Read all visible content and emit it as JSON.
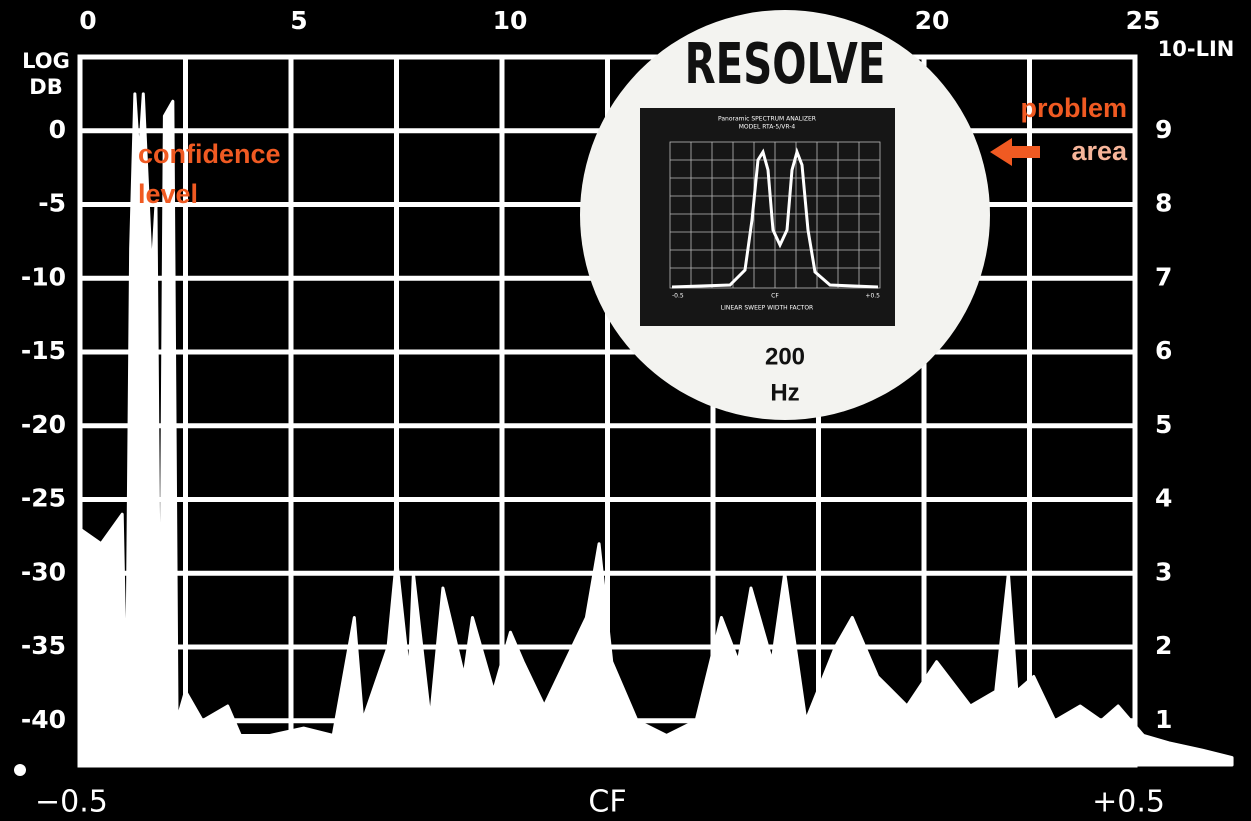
{
  "chart_data": {
    "type": "area",
    "y_label": [
      "LOG",
      "DB"
    ],
    "y2_label": "10-LIN",
    "color": "#ffffff",
    "x": [
      0.0,
      0.5,
      1.0,
      1.1,
      1.2,
      1.3,
      1.4,
      1.5,
      1.7,
      1.8,
      1.9,
      2.0,
      2.2,
      2.3,
      2.5,
      2.9,
      3.5,
      3.8,
      4.5,
      5.3,
      6.0,
      6.5,
      6.7,
      7.3,
      7.5,
      7.8,
      7.9,
      8.3,
      8.6,
      9.1,
      9.3,
      9.8,
      10.2,
      10.5,
      11.0,
      11.5,
      12.0,
      12.3,
      12.6,
      13.2,
      13.9,
      14.6,
      15.2,
      15.6,
      15.9,
      16.4,
      16.7,
      17.2,
      17.9,
      18.3,
      18.9,
      19.6,
      20.3,
      21.1,
      21.7,
      22.0,
      22.2,
      22.6,
      23.1,
      23.7,
      24.2,
      24.6,
      25.2,
      25.8,
      26.6,
      27.3
    ],
    "values": [
      -27,
      -28,
      -26,
      -40,
      -8,
      2.5,
      -2,
      2.5,
      -10,
      -5,
      -40,
      1,
      2,
      -40,
      -38,
      -40,
      -39,
      -41,
      -41,
      -40.5,
      -41,
      -33,
      -40,
      -35,
      -29,
      -37,
      -30,
      -40,
      -31,
      -37,
      -33,
      -38,
      -34,
      -36,
      -39,
      -36,
      -33,
      -28,
      -36,
      -40,
      -41,
      -40,
      -33,
      -36,
      -31,
      -36,
      -30,
      -40,
      -35,
      -33,
      -37,
      -39,
      -36,
      -39,
      -38,
      -30,
      -38,
      -37,
      -40,
      -39,
      -40,
      -39,
      -41,
      -41.5,
      -42,
      -42.5
    ],
    "xlim": [
      0,
      25
    ],
    "xticks": [
      0,
      5,
      10,
      20,
      25
    ],
    "xgrid": [
      0,
      2.5,
      5,
      7.5,
      10,
      12.5,
      15,
      17.5,
      20,
      22.5,
      25
    ],
    "x2lim": [
      -0.5,
      0.5
    ],
    "x2ticks": [
      {
        "value": -0.5,
        "label": "−0.5"
      },
      {
        "value": 0,
        "label": "CF"
      },
      {
        "value": 0.5,
        "label": "+0.5"
      }
    ],
    "ylim": [
      -43,
      5
    ],
    "yticks": [
      0,
      -5,
      -10,
      -15,
      -20,
      -25,
      -30,
      -35,
      -40
    ],
    "y2lim": [
      0.4,
      10
    ],
    "y2ticks": [
      1,
      2,
      3,
      4,
      5,
      6,
      7,
      8,
      9
    ],
    "grid": true,
    "confidence_label": [
      "confidence",
      "level"
    ],
    "problem_label": [
      "problem",
      "area"
    ]
  },
  "inset": {
    "title": "RESOLVE",
    "caption": [
      "200",
      "Hz"
    ],
    "screen": {
      "title": "Panoramic SPECTRUM ANALIZER",
      "model": "MODEL RTA-5/VR-4",
      "x_label": "LINEAR SWEEP WIDTH FACTOR",
      "xticks": [
        "-0.5",
        "CF",
        "+0.5"
      ]
    }
  }
}
